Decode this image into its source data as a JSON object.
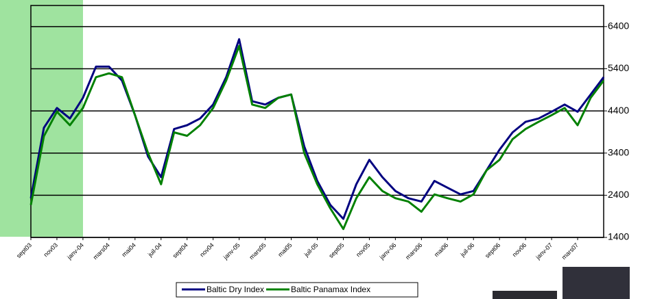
{
  "chart_data": {
    "type": "line",
    "categories": [
      "sept03",
      null,
      "nov03",
      null,
      "janv-04",
      null,
      "mars04",
      null,
      "mai04",
      null,
      "juil-04",
      null,
      "sept04",
      null,
      "nov04",
      null,
      "janv-05",
      null,
      "mars05",
      null,
      "mai05",
      null,
      "juil-05",
      null,
      "sept05",
      null,
      "nov05",
      null,
      "janv-06",
      null,
      "mars06",
      null,
      "mai06",
      null,
      "juil-06",
      null,
      "sept06",
      null,
      "nov06",
      null,
      "janv-07",
      null,
      "mars07",
      null,
      null
    ],
    "series": [
      {
        "name": "Baltic Dry Index",
        "color": "#000080",
        "values": [
          2330,
          4000,
          4470,
          4220,
          4710,
          5450,
          5450,
          5120,
          4300,
          3320,
          2830,
          3970,
          4060,
          4220,
          4550,
          5200,
          6100,
          4630,
          4550,
          4710,
          4790,
          3560,
          2740,
          2170,
          1840,
          2660,
          3240,
          2830,
          2500,
          2330,
          2250,
          2740,
          2580,
          2420,
          2500,
          2990,
          3480,
          3890,
          4140,
          4220,
          4380,
          4550,
          4380,
          4790,
          5200
        ]
      },
      {
        "name": "Baltic Panamax Index",
        "color": "#008000",
        "values": [
          2170,
          3800,
          4380,
          4060,
          4470,
          5200,
          5290,
          5200,
          4300,
          3400,
          2660,
          3890,
          3810,
          4060,
          4470,
          5120,
          5940,
          4550,
          4470,
          4710,
          4790,
          3400,
          2660,
          2090,
          1600,
          2330,
          2830,
          2500,
          2330,
          2250,
          2010,
          2420,
          2330,
          2250,
          2420,
          2990,
          3240,
          3730,
          3970,
          4140,
          4300,
          4470,
          4060,
          4710,
          5120
        ]
      }
    ],
    "ylim": [
      1400,
      6900
    ],
    "yticks": [
      1400,
      2400,
      3400,
      4400,
      5400,
      6400
    ],
    "grid": true,
    "legend": "bottom"
  }
}
